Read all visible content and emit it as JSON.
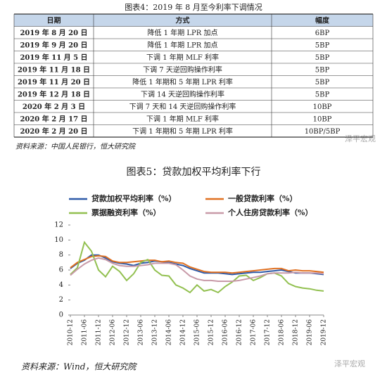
{
  "table_caption": "图表4：2019 年 8 月至今利率下调情况",
  "table": {
    "header": [
      "日期",
      "方式",
      "幅度"
    ],
    "rows": [
      [
        "2019 年 8 月 20 日",
        "降低 1 年期 LPR 加点",
        "6BP"
      ],
      [
        "2019 年 9 月 20 日",
        "降低 1 年期 LPR 加点",
        "5BP"
      ],
      [
        "2019 年 11 月 5 日",
        "下调 1 年期 MLF 利率",
        "5BP"
      ],
      [
        "2019 年 11 月 18 日",
        "下调 7 天逆回购操作利率",
        "5BP"
      ],
      [
        "2019 年 11 月 20 日",
        "降低 1 年期和 5 年期 LPR 利率",
        "5BP"
      ],
      [
        "2019 年 12 月 18 日",
        "下调 14 天逆回购操作利率",
        "5BP"
      ],
      [
        "2020 年 2 月 3 日",
        "下调 7 天和 14 天逆回购操作利率",
        "10BP"
      ],
      [
        "2020 年 2 月 17 日",
        "下调 1 年期 MLF 利率",
        "10BP"
      ],
      [
        "2020 年 2 月 20 日",
        "下调 1 年期和 5 年期 LPR 利率",
        "10BP/5BP"
      ]
    ]
  },
  "table_source": "资料来源：中国人民银行，恒大研究院",
  "watermark": "泽平宏观",
  "chart_data": {
    "type": "line",
    "title": "图表5：贷款加权平均利率下行",
    "categories": [
      "2010-12",
      null,
      "2011-06",
      null,
      "2011-12",
      null,
      "2012-06",
      null,
      "2012-12",
      null,
      "2013-06",
      null,
      "2013-12",
      null,
      "2014-06",
      null,
      "2014-12",
      null,
      "2015-06",
      null,
      "2015-12",
      null,
      "2016-06",
      null,
      "2016-12",
      null,
      "2017-06",
      null,
      "2017-12",
      null,
      "2018-06",
      null,
      "2018-12",
      null,
      "2019-06",
      null,
      "2019-12"
    ],
    "ylim": [
      0,
      12
    ],
    "yticks": [
      0,
      2,
      4,
      6,
      8,
      10,
      12
    ],
    "series": [
      {
        "name": "贷款加权平均利率（%）",
        "color": "#2e5aa8",
        "values": [
          6.2,
          6.9,
          7.3,
          8.0,
          8.0,
          7.6,
          7.1,
          6.9,
          6.8,
          6.6,
          6.9,
          7.0,
          7.2,
          7.1,
          7.0,
          6.8,
          6.6,
          6.2,
          5.9,
          5.6,
          5.6,
          5.6,
          5.5,
          5.4,
          5.5,
          5.6,
          5.7,
          5.7,
          5.8,
          5.9,
          6.0,
          5.8,
          5.6,
          5.6,
          5.6,
          5.5,
          5.4
        ]
      },
      {
        "name": "一般贷款利率（%）",
        "color": "#e07020",
        "values": [
          6.3,
          7.0,
          7.4,
          7.8,
          7.9,
          7.8,
          7.2,
          7.0,
          7.0,
          7.1,
          7.2,
          7.3,
          7.3,
          7.1,
          7.2,
          7.0,
          6.9,
          6.4,
          6.1,
          5.8,
          5.7,
          5.7,
          5.7,
          5.6,
          5.7,
          5.8,
          5.9,
          6.0,
          6.1,
          6.2,
          6.2,
          5.9,
          6.0,
          5.9,
          5.9,
          5.8,
          5.7
        ]
      },
      {
        "name": "票据融资利率（%）",
        "color": "#92c050",
        "values": [
          5.4,
          6.3,
          9.7,
          8.5,
          6.0,
          5.1,
          6.5,
          5.8,
          4.6,
          5.5,
          7.0,
          7.4,
          6.0,
          5.3,
          5.2,
          4.0,
          3.6,
          3.0,
          4.0,
          3.2,
          3.4,
          3.0,
          3.8,
          4.4,
          5.2,
          5.3,
          4.6,
          5.0,
          5.5,
          5.6,
          5.2,
          4.2,
          3.8,
          3.6,
          3.5,
          3.3,
          3.2
        ]
      },
      {
        "name": "个人住房贷款利率（%）",
        "color": "#c89aa8",
        "values": [
          5.3,
          6.1,
          6.8,
          7.3,
          7.6,
          7.4,
          6.9,
          6.6,
          6.5,
          6.5,
          6.6,
          6.7,
          6.9,
          6.9,
          6.9,
          6.7,
          6.0,
          5.2,
          4.8,
          4.6,
          4.6,
          4.5,
          4.5,
          4.5,
          4.6,
          4.8,
          5.0,
          5.2,
          5.5,
          5.6,
          5.6,
          5.6,
          5.7,
          5.6,
          5.6,
          5.6,
          5.5
        ]
      }
    ]
  },
  "chart_source": "资料来源：Wind，恒大研究院"
}
